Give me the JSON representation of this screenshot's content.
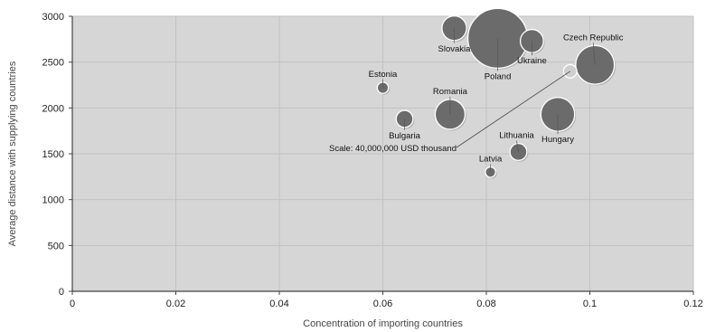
{
  "chart_data": {
    "type": "scatter",
    "subtype": "bubble",
    "title": "",
    "xlabel": "Concentration of importing countries",
    "ylabel": "Average distance with supplying countries",
    "xlim": [
      0,
      0.12
    ],
    "ylim": [
      0,
      3000
    ],
    "x_ticks": [
      0,
      0.02,
      0.04,
      0.06,
      0.08,
      0.1,
      0.12
    ],
    "x_tick_labels": [
      "0",
      "0.02",
      "0.04",
      "0.06",
      "0.08",
      "0.1",
      "0.12"
    ],
    "y_ticks": [
      0,
      500,
      1000,
      1500,
      2000,
      2500,
      3000
    ],
    "y_tick_labels": [
      "0",
      "500",
      "1000",
      "1500",
      "2000",
      "2500",
      "3000"
    ],
    "grid": true,
    "legend": "none",
    "colors": {
      "plot_background": "#d6d6d6",
      "bubble_fill": "#6b6b6b",
      "bubble_stroke": "#ffffff",
      "grid": "#c2c2c2"
    },
    "points": [
      {
        "label": "Slovakia",
        "x": 0.0738,
        "y": 2870,
        "size": 0.17
      },
      {
        "label": "Poland",
        "x": 0.0822,
        "y": 2760,
        "size": 1.0
      },
      {
        "label": "Ukraine",
        "x": 0.0888,
        "y": 2730,
        "size": 0.15
      },
      {
        "label": "Czech Republic",
        "x": 0.101,
        "y": 2470,
        "size": 0.42
      },
      {
        "label": "Estonia",
        "x": 0.06,
        "y": 2220,
        "size": 0.035
      },
      {
        "label": "Romania",
        "x": 0.073,
        "y": 1930,
        "size": 0.25
      },
      {
        "label": "Bulgaria",
        "x": 0.0642,
        "y": 1880,
        "size": 0.08
      },
      {
        "label": "Hungary",
        "x": 0.0938,
        "y": 1930,
        "size": 0.32
      },
      {
        "label": "Lithuania",
        "x": 0.0862,
        "y": 1520,
        "size": 0.08
      },
      {
        "label": "Latvia",
        "x": 0.0808,
        "y": 1300,
        "size": 0.03
      }
    ],
    "scale_bubble": {
      "label": "Scale: 40,000,000 USD thousand",
      "x": 0.0962,
      "y": 2400,
      "size": 0.05
    }
  }
}
